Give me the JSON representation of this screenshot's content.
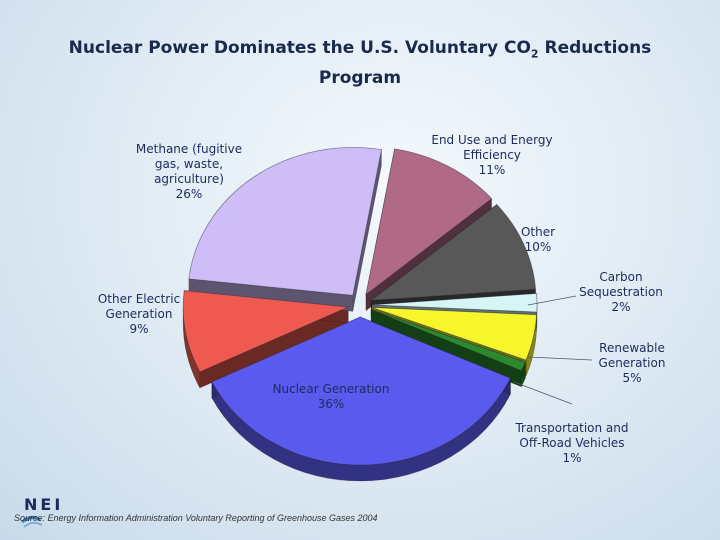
{
  "page": {
    "title_main": "Nuclear Power Dominates the U.S. Voluntary CO",
    "title_sub": "2",
    "title_after": " Reductions",
    "title_line2": "Program",
    "source": "Source:  Energy Information Administration Voluntary Reporting of Greenhouse Gases 2004",
    "logo_text": "NEI"
  },
  "chart_data": {
    "type": "pie",
    "title": "Nuclear Power Dominates the U.S. Voluntary CO2 Reductions Program",
    "unit": "%",
    "exploded": true,
    "three_d": true,
    "slices": [
      {
        "label": "End Use and Energy Efficiency",
        "value": 11,
        "color": "#b06a86",
        "label_lines": [
          "End Use and Energy",
          "Efficiency",
          "11%"
        ]
      },
      {
        "label": "Other",
        "value": 10,
        "color": "#585858",
        "label_lines": [
          "Other",
          "10%"
        ]
      },
      {
        "label": "Carbon Sequestration",
        "value": 2,
        "color": "#d6f6f6",
        "label_lines": [
          "Carbon",
          "Sequestration",
          "2%"
        ]
      },
      {
        "label": "Renewable Generation",
        "value": 5,
        "color": "#f6f62a",
        "label_lines": [
          "Renewable",
          "Generation",
          "5%"
        ]
      },
      {
        "label": "Transportation and Off-Road Vehicles",
        "value": 1,
        "color": "#2c8a2c",
        "label_lines": [
          "Transportation and",
          "Off-Road Vehicles",
          "1%"
        ]
      },
      {
        "label": "Nuclear Generation",
        "value": 36,
        "color": "#5a5aee",
        "label_lines": [
          "Nuclear Generation",
          "36%"
        ]
      },
      {
        "label": "Other Electric Generation",
        "value": 9,
        "color": "#ee5a50",
        "label_lines": [
          "Other Electric",
          "Generation",
          "9%"
        ]
      },
      {
        "label": "Methane (fugitive gas, waste, agriculture)",
        "value": 26,
        "color": "#cebdf6",
        "label_lines": [
          "Methane (fugitive",
          "gas, waste,",
          "agriculture)",
          "26%"
        ]
      }
    ]
  }
}
